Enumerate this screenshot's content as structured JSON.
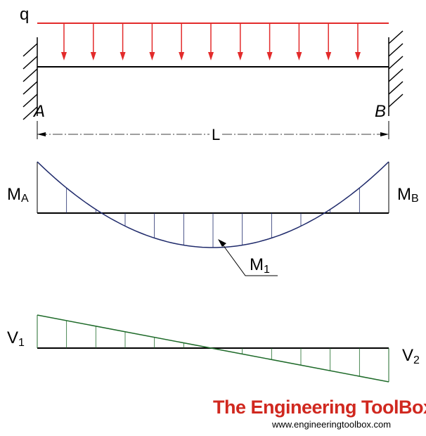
{
  "labels": {
    "load": "q",
    "support_left": "A",
    "support_right": "B",
    "span": "L",
    "moment_left": {
      "main": "M",
      "sub": "A"
    },
    "moment_right": {
      "main": "M",
      "sub": "B"
    },
    "moment_mid": {
      "main": "M",
      "sub": "1"
    },
    "shear_left": {
      "main": "V",
      "sub": "1"
    },
    "shear_right": {
      "main": "V",
      "sub": "2"
    }
  },
  "branding": {
    "title": "The Engineering ToolBox",
    "url": "www.engineeringtoolbox.com"
  },
  "colors": {
    "load": "#e32b2b",
    "beam": "#000000",
    "moment": "#1f2a6b",
    "shear": "#1f6b2a",
    "brand": "#d0281f"
  }
}
